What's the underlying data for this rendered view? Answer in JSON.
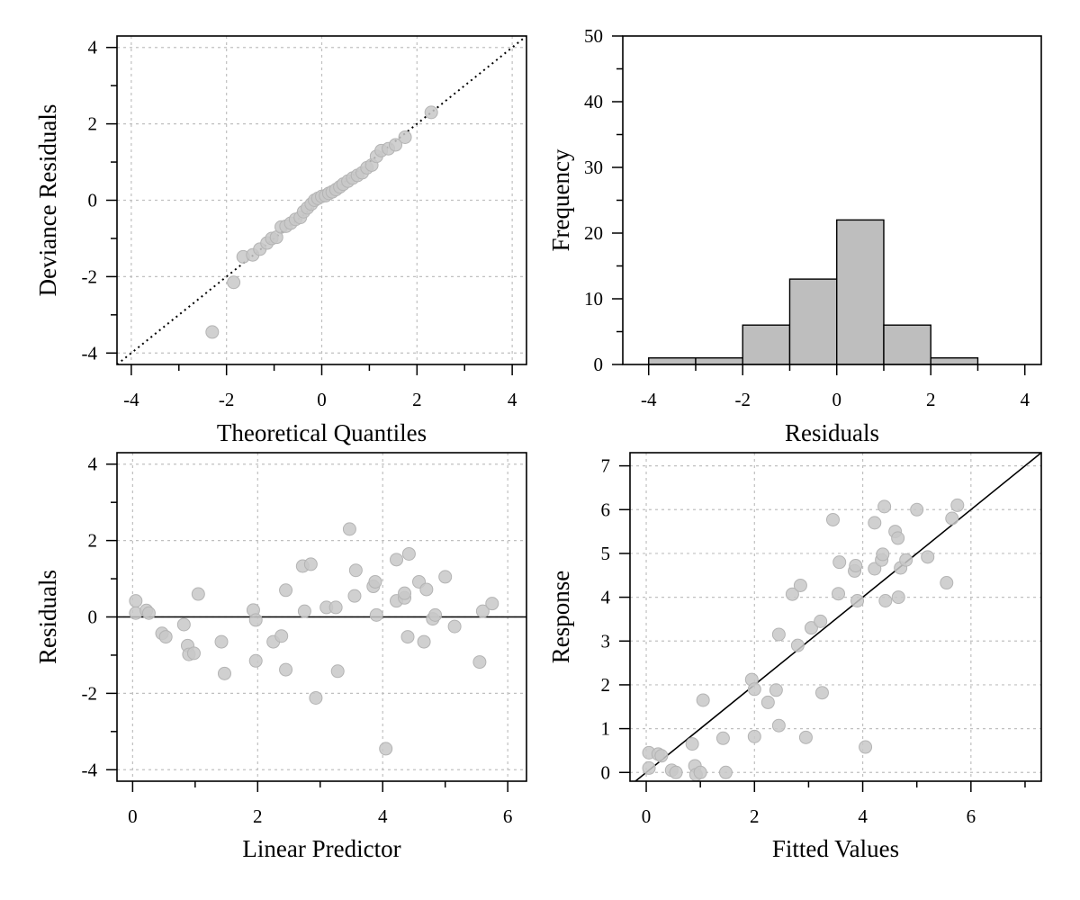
{
  "colors": {
    "point_fill": "#c8c8c8",
    "point_stroke": "#b4b4b4",
    "bar_fill": "#bebebe",
    "grid": "#c0c0c0",
    "line": "#000000"
  },
  "chart_data": [
    {
      "id": "qq",
      "type": "scatter",
      "xlabel": "Theoretical Quantiles",
      "ylabel": "Deviance Residuals",
      "xlim": [
        -4.3,
        4.3
      ],
      "ylim": [
        -4.3,
        4.3
      ],
      "xticks": [
        -4,
        -2,
        0,
        2,
        4
      ],
      "xtick_labels": [
        "-4",
        "-2",
        "0",
        "2",
        "4"
      ],
      "xminor": [
        -3,
        -1,
        1,
        3
      ],
      "yticks": [
        -4,
        -2,
        0,
        2,
        4
      ],
      "ytick_labels": [
        "-4",
        "-2",
        "0",
        "2",
        "4"
      ],
      "yminor": [
        -3,
        -1,
        1,
        3
      ],
      "grid": true,
      "reference_line": {
        "style": "dotted",
        "from": [
          -4.3,
          -4.3
        ],
        "to": [
          4.3,
          4.3
        ]
      },
      "points": [
        [
          -2.3,
          -3.45
        ],
        [
          -1.85,
          -2.15
        ],
        [
          -1.65,
          -1.48
        ],
        [
          -1.45,
          -1.43
        ],
        [
          -1.3,
          -1.28
        ],
        [
          -1.15,
          -1.12
        ],
        [
          -1.05,
          -1.0
        ],
        [
          -0.95,
          -0.97
        ],
        [
          -0.85,
          -0.7
        ],
        [
          -0.75,
          -0.68
        ],
        [
          -0.65,
          -0.6
        ],
        [
          -0.55,
          -0.5
        ],
        [
          -0.45,
          -0.45
        ],
        [
          -0.38,
          -0.3
        ],
        [
          -0.3,
          -0.2
        ],
        [
          -0.22,
          -0.1
        ],
        [
          -0.15,
          0.0
        ],
        [
          -0.08,
          0.05
        ],
        [
          0.0,
          0.1
        ],
        [
          0.08,
          0.12
        ],
        [
          0.15,
          0.18
        ],
        [
          0.22,
          0.22
        ],
        [
          0.3,
          0.28
        ],
        [
          0.38,
          0.35
        ],
        [
          0.45,
          0.42
        ],
        [
          0.55,
          0.5
        ],
        [
          0.65,
          0.58
        ],
        [
          0.75,
          0.65
        ],
        [
          0.85,
          0.72
        ],
        [
          0.95,
          0.85
        ],
        [
          1.05,
          0.92
        ],
        [
          1.15,
          1.15
        ],
        [
          1.25,
          1.3
        ],
        [
          1.4,
          1.35
        ],
        [
          1.55,
          1.45
        ],
        [
          1.75,
          1.65
        ],
        [
          2.3,
          2.3
        ]
      ]
    },
    {
      "id": "hist",
      "type": "bar",
      "xlabel": "Residuals",
      "ylabel": "Frequency",
      "xlim": [
        -4.55,
        4.35
      ],
      "ylim": [
        0,
        50
      ],
      "xticks": [
        -4,
        -2,
        0,
        2,
        4
      ],
      "xtick_labels": [
        "-4",
        "-2",
        "0",
        "2",
        "4"
      ],
      "xminor": [
        -3,
        -1,
        1,
        3
      ],
      "yticks": [
        0,
        10,
        20,
        30,
        40,
        50
      ],
      "ytick_labels": [
        "0",
        "10",
        "20",
        "30",
        "40",
        "50"
      ],
      "yminor": [
        5,
        15,
        25,
        35,
        45
      ],
      "grid": false,
      "bins": [
        {
          "from": -4,
          "to": -3,
          "count": 1
        },
        {
          "from": -3,
          "to": -2,
          "count": 1
        },
        {
          "from": -2,
          "to": -1,
          "count": 6
        },
        {
          "from": -1,
          "to": 0,
          "count": 13
        },
        {
          "from": 0,
          "to": 1,
          "count": 22
        },
        {
          "from": 1,
          "to": 2,
          "count": 6
        },
        {
          "from": 2,
          "to": 3,
          "count": 1
        }
      ]
    },
    {
      "id": "resid_vs_lp",
      "type": "scatter",
      "xlabel": "Linear Predictor",
      "ylabel": "Residuals",
      "xlim": [
        -0.25,
        6.3
      ],
      "ylim": [
        -4.3,
        4.3
      ],
      "xticks": [
        0,
        2,
        4,
        6
      ],
      "xtick_labels": [
        "0",
        "2",
        "4",
        "6"
      ],
      "xminor": [
        1,
        3,
        5
      ],
      "yticks": [
        -4,
        -2,
        0,
        2,
        4
      ],
      "ytick_labels": [
        "-4",
        "-2",
        "0",
        "2",
        "4"
      ],
      "yminor": [
        -3,
        -1,
        1,
        3
      ],
      "grid": true,
      "reference_line": {
        "style": "solid",
        "from": [
          -0.25,
          0
        ],
        "to": [
          6.3,
          0
        ]
      },
      "points": [
        [
          0.05,
          0.42
        ],
        [
          0.05,
          0.1
        ],
        [
          0.22,
          0.17
        ],
        [
          0.26,
          0.1
        ],
        [
          0.47,
          -0.43
        ],
        [
          0.53,
          -0.52
        ],
        [
          0.82,
          -0.2
        ],
        [
          0.88,
          -0.75
        ],
        [
          0.9,
          -0.98
        ],
        [
          0.98,
          -0.95
        ],
        [
          1.05,
          0.6
        ],
        [
          1.42,
          -0.65
        ],
        [
          1.47,
          -1.48
        ],
        [
          1.93,
          0.18
        ],
        [
          1.97,
          -0.08
        ],
        [
          1.97,
          -1.15
        ],
        [
          2.25,
          -0.65
        ],
        [
          2.38,
          -0.5
        ],
        [
          2.45,
          0.7
        ],
        [
          2.45,
          -1.38
        ],
        [
          2.72,
          1.33
        ],
        [
          2.75,
          0.15
        ],
        [
          2.85,
          1.38
        ],
        [
          2.93,
          -2.12
        ],
        [
          3.1,
          0.25
        ],
        [
          3.25,
          0.25
        ],
        [
          3.28,
          -1.42
        ],
        [
          3.47,
          2.3
        ],
        [
          3.55,
          0.55
        ],
        [
          3.57,
          1.22
        ],
        [
          3.85,
          0.8
        ],
        [
          3.88,
          0.92
        ],
        [
          3.9,
          0.05
        ],
        [
          4.05,
          -3.45
        ],
        [
          4.22,
          1.5
        ],
        [
          4.22,
          0.42
        ],
        [
          4.35,
          0.5
        ],
        [
          4.35,
          0.62
        ],
        [
          4.4,
          -0.52
        ],
        [
          4.42,
          1.65
        ],
        [
          4.58,
          0.92
        ],
        [
          4.66,
          -0.65
        ],
        [
          4.7,
          0.72
        ],
        [
          4.8,
          -0.05
        ],
        [
          4.84,
          0.05
        ],
        [
          5.0,
          1.05
        ],
        [
          5.15,
          -0.25
        ],
        [
          5.55,
          -1.18
        ],
        [
          5.6,
          0.15
        ],
        [
          5.75,
          0.35
        ]
      ]
    },
    {
      "id": "response_vs_fitted",
      "type": "scatter",
      "xlabel": "Fitted Values",
      "ylabel": "Response",
      "xlim": [
        -0.3,
        7.3
      ],
      "ylim": [
        -0.2,
        7.3
      ],
      "xticks": [
        0,
        2,
        4,
        6
      ],
      "xtick_labels": [
        "0",
        "2",
        "4",
        "6"
      ],
      "xminor": [
        1,
        3,
        5,
        7
      ],
      "yticks": [
        0,
        1,
        2,
        3,
        4,
        5,
        6,
        7
      ],
      "ytick_labels": [
        "0",
        "1",
        "2",
        "3",
        "4",
        "5",
        "6",
        "7"
      ],
      "yminor": [],
      "grid": true,
      "reference_line": {
        "style": "solid",
        "from": [
          -0.3,
          -0.3
        ],
        "to": [
          7.3,
          7.3
        ]
      },
      "points": [
        [
          0.05,
          0.45
        ],
        [
          0.05,
          0.1
        ],
        [
          0.22,
          0.42
        ],
        [
          0.28,
          0.38
        ],
        [
          0.47,
          0.05
        ],
        [
          0.55,
          0.0
        ],
        [
          0.85,
          0.65
        ],
        [
          0.9,
          0.15
        ],
        [
          0.92,
          -0.05
        ],
        [
          1.0,
          0.0
        ],
        [
          1.05,
          1.65
        ],
        [
          1.42,
          0.78
        ],
        [
          1.47,
          0.0
        ],
        [
          1.95,
          2.12
        ],
        [
          2.0,
          1.9
        ],
        [
          2.0,
          0.82
        ],
        [
          2.25,
          1.6
        ],
        [
          2.4,
          1.88
        ],
        [
          2.45,
          3.15
        ],
        [
          2.45,
          1.07
        ],
        [
          2.7,
          4.07
        ],
        [
          2.8,
          2.9
        ],
        [
          2.85,
          4.27
        ],
        [
          2.95,
          0.8
        ],
        [
          3.05,
          3.3
        ],
        [
          3.22,
          3.45
        ],
        [
          3.25,
          1.82
        ],
        [
          3.45,
          5.77
        ],
        [
          3.55,
          4.08
        ],
        [
          3.57,
          4.8
        ],
        [
          3.85,
          4.6
        ],
        [
          3.87,
          4.72
        ],
        [
          3.9,
          3.92
        ],
        [
          4.05,
          0.58
        ],
        [
          4.22,
          5.7
        ],
        [
          4.22,
          4.65
        ],
        [
          4.35,
          4.85
        ],
        [
          4.37,
          4.98
        ],
        [
          4.4,
          6.07
        ],
        [
          4.42,
          3.92
        ],
        [
          4.6,
          5.5
        ],
        [
          4.65,
          5.35
        ],
        [
          4.66,
          4.0
        ],
        [
          4.7,
          4.67
        ],
        [
          4.8,
          4.85
        ],
        [
          5.0,
          6.0
        ],
        [
          5.2,
          4.92
        ],
        [
          5.55,
          4.33
        ],
        [
          5.65,
          5.8
        ],
        [
          5.75,
          6.1
        ]
      ]
    }
  ]
}
